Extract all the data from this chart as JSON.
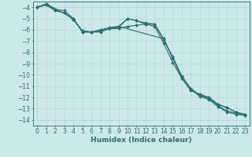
{
  "xlabel": "Humidex (Indice chaleur)",
  "background_color": "#cce8e8",
  "grid_color": "#b8d8d8",
  "line_color": "#2d6e6e",
  "xlim": [
    -0.5,
    23.5
  ],
  "ylim": [
    -14.5,
    -3.5
  ],
  "series": [
    {
      "x": [
        0,
        1,
        2,
        3,
        4,
        5,
        6,
        7,
        8,
        9,
        10,
        11,
        12,
        13,
        14,
        15,
        16,
        17,
        18,
        19,
        20,
        21,
        22,
        23
      ],
      "y": [
        -4.0,
        -3.7,
        -4.2,
        -4.3,
        -5.0,
        -6.2,
        -6.2,
        -6.2,
        -5.9,
        -5.8,
        -5.0,
        -5.2,
        -5.5,
        -5.5,
        -6.8,
        -8.5,
        -10.2,
        -11.3,
        -11.9,
        -12.2,
        -12.8,
        -13.3,
        -13.5,
        -13.6
      ]
    },
    {
      "x": [
        0,
        1,
        2,
        3,
        4,
        5,
        6,
        7,
        8,
        9,
        10,
        11,
        12,
        13,
        14,
        15,
        16,
        17,
        18,
        19,
        20,
        21,
        22,
        23
      ],
      "y": [
        -4.0,
        -3.8,
        -4.3,
        -4.5,
        -5.1,
        -6.1,
        -6.2,
        -6.1,
        -5.9,
        -5.9,
        -5.7,
        -5.6,
        -5.5,
        -5.7,
        -7.2,
        -8.9,
        -10.3,
        -11.4,
        -11.7,
        -12.0,
        -12.6,
        -12.9,
        -13.3,
        -13.5
      ]
    },
    {
      "x": [
        0,
        1,
        4,
        5,
        6,
        7,
        8,
        9,
        10,
        11,
        12,
        13,
        14,
        15,
        16,
        17,
        18,
        19,
        20,
        21,
        22,
        23
      ],
      "y": [
        -4.0,
        -3.7,
        -5.0,
        -6.2,
        -6.2,
        -6.0,
        -5.8,
        -5.7,
        -5.0,
        -5.2,
        -5.4,
        -5.5,
        -6.9,
        -8.4,
        -10.1,
        -11.2,
        -11.8,
        -12.1,
        -12.7,
        -13.2,
        -13.4,
        -13.6
      ]
    },
    {
      "x": [
        0,
        1,
        2,
        3,
        4,
        5,
        6,
        7,
        8,
        9,
        14,
        15,
        16,
        17,
        18,
        19,
        20,
        21,
        22,
        23
      ],
      "y": [
        -4.0,
        -3.8,
        -4.3,
        -4.5,
        -5.1,
        -6.1,
        -6.2,
        -6.1,
        -5.9,
        -5.7,
        -6.8,
        -8.5,
        -10.2,
        -11.3,
        -11.8,
        -12.0,
        -12.6,
        -12.9,
        -13.3,
        -13.5
      ]
    }
  ],
  "marker": "D",
  "markersize": 2.0,
  "linewidth": 0.8,
  "xticks": [
    0,
    1,
    2,
    3,
    4,
    5,
    6,
    7,
    8,
    9,
    10,
    11,
    12,
    13,
    14,
    15,
    16,
    17,
    18,
    19,
    20,
    21,
    22,
    23
  ],
  "yticks": [
    -4,
    -5,
    -6,
    -7,
    -8,
    -9,
    -10,
    -11,
    -12,
    -13,
    -14
  ],
  "tick_fontsize": 5.5,
  "xlabel_fontsize": 6.5
}
